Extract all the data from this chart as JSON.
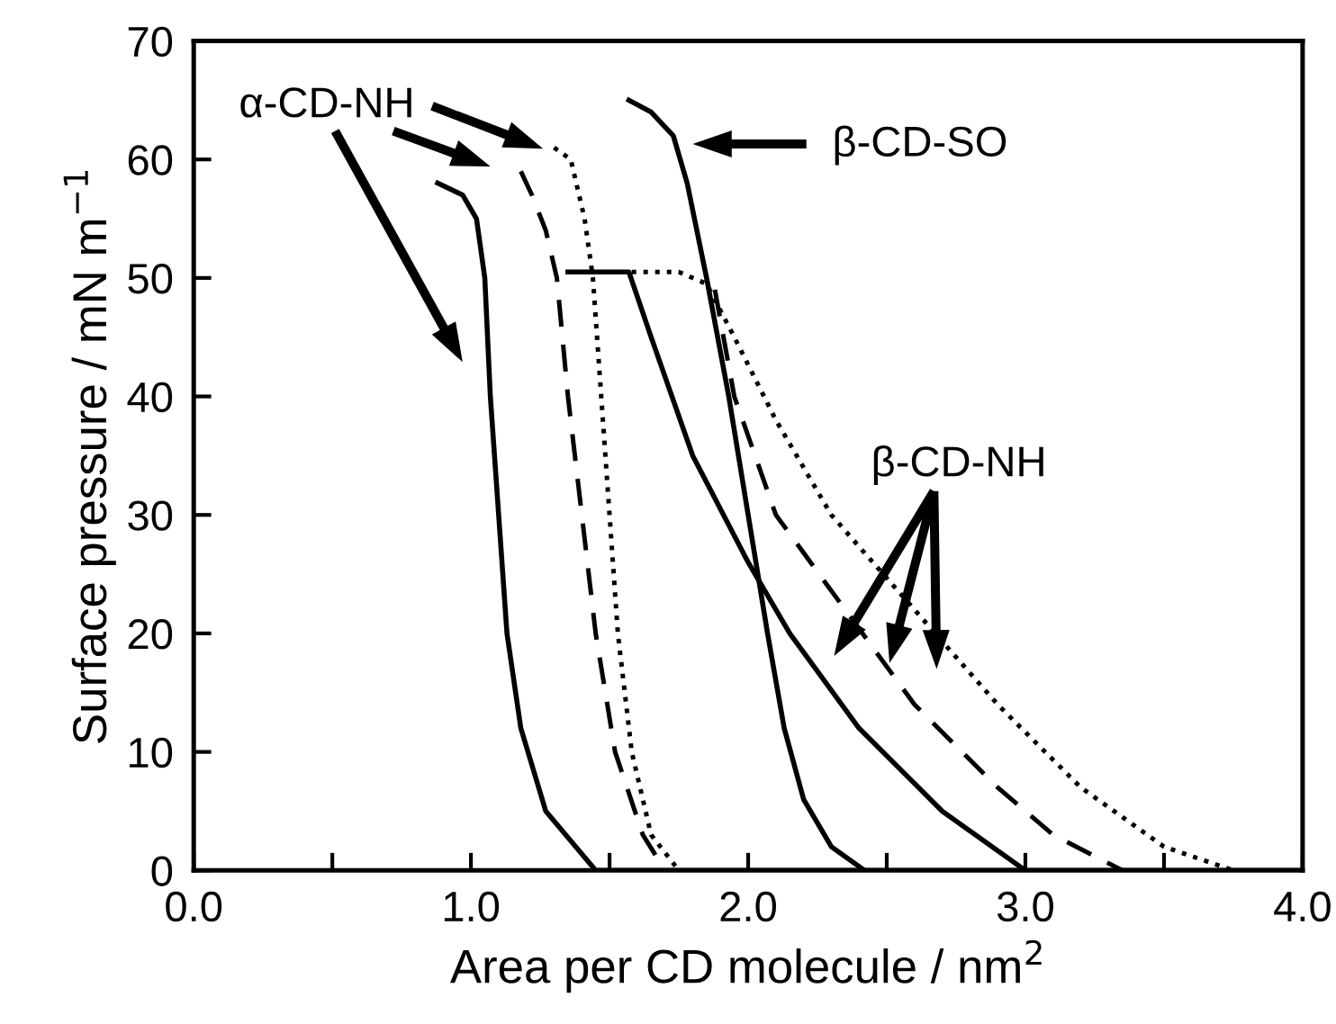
{
  "chart_data": {
    "type": "line",
    "xlabel": "Area per CD molecule / nm$^{2}$",
    "ylabel": "Surface pressure / mN m$^{−1}$",
    "xlim": [
      0,
      4
    ],
    "ylim": [
      0,
      70
    ],
    "xticks": [
      {
        "value": 0,
        "label": "0.0"
      },
      {
        "value": 0.5,
        "label": null
      },
      {
        "value": 1,
        "label": "1.0"
      },
      {
        "value": 1.5,
        "label": null
      },
      {
        "value": 2,
        "label": "2.0"
      },
      {
        "value": 2.5,
        "label": null
      },
      {
        "value": 3,
        "label": "3.0"
      },
      {
        "value": 3.5,
        "label": null
      },
      {
        "value": 4,
        "label": "4.0"
      }
    ],
    "yticks": [
      0,
      10,
      20,
      30,
      40,
      50,
      60,
      70
    ],
    "grid": false,
    "legend": false,
    "marker": "none",
    "series": [
      {
        "color": "#000000",
        "line_style": "solid",
        "x": [
          0.88,
          0.97,
          1.02,
          1.05,
          1.07,
          1.1,
          1.13,
          1.18,
          1.27,
          1.45,
          4.0
        ],
        "values": [
          58,
          57,
          55,
          50,
          40,
          30,
          20,
          12,
          5,
          0,
          0
        ]
      },
      {
        "color": "#000000",
        "line_style": "dashed",
        "x": [
          1.18,
          1.22,
          1.27,
          1.31,
          1.35,
          1.4,
          1.45,
          1.52,
          1.62,
          1.7
        ],
        "values": [
          59,
          57,
          54,
          50,
          40,
          30,
          20,
          10,
          3,
          0
        ]
      },
      {
        "color": "#000000",
        "line_style": "dotted",
        "x": [
          1.3,
          1.36,
          1.41,
          1.44,
          1.47,
          1.5,
          1.53,
          1.58,
          1.65,
          1.75
        ],
        "values": [
          61,
          60,
          55,
          50,
          40,
          30,
          20,
          10,
          3,
          0
        ]
      },
      {
        "color": "#000000",
        "line_style": "solid",
        "x": [
          1.35,
          1.57,
          1.65,
          1.8,
          2.0,
          2.15,
          2.4,
          2.7,
          3.0
        ],
        "values": [
          50.5,
          50.5,
          45,
          35,
          26,
          20,
          12,
          5,
          0
        ]
      },
      {
        "color": "#000000",
        "line_style": "dashed",
        "x": [
          1.88,
          1.95,
          2.1,
          2.35,
          2.6,
          2.9,
          3.1,
          3.35
        ],
        "values": [
          49,
          40,
          30,
          22,
          14,
          7,
          3,
          0
        ]
      },
      {
        "color": "#000000",
        "line_style": "dotted",
        "x": [
          1.58,
          1.75,
          1.85,
          1.95,
          2.1,
          2.3,
          2.6,
          2.9,
          3.2,
          3.5,
          3.75
        ],
        "values": [
          50.5,
          50.5,
          49.5,
          45,
          38,
          30,
          22,
          14,
          7,
          2,
          0
        ]
      },
      {
        "color": "#000000",
        "line_style": "solid",
        "x": [
          1.57,
          1.65,
          1.73,
          1.78,
          1.85,
          1.93,
          2.0,
          2.07,
          2.13,
          2.2,
          2.3,
          2.42
        ],
        "values": [
          65,
          64,
          62,
          58,
          50,
          40,
          30,
          20,
          12,
          6,
          2,
          0
        ]
      }
    ],
    "annotations": [
      "α-CD-NH",
      "β-CD-SO",
      "β-CD-NH"
    ]
  }
}
